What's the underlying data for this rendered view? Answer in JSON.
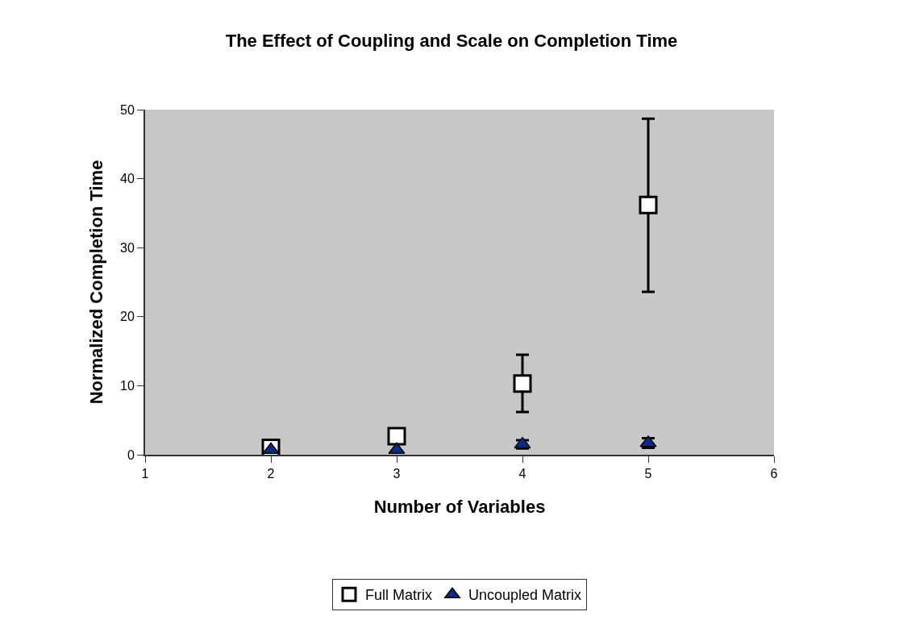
{
  "chart_data": {
    "type": "scatter",
    "title": "The Effect of Coupling and Scale on Completion Time",
    "xlabel": "Number of Variables",
    "ylabel": "Normalized Completion Time",
    "x": [
      2,
      3,
      4,
      5
    ],
    "series": [
      {
        "name": "Full Matrix",
        "color": "#ffffff",
        "marker": "square",
        "values": [
          1.0,
          2.7,
          10.3,
          36.2
        ],
        "errors": [
          null,
          null,
          [
            6.2,
            14.5
          ],
          [
            23.6,
            48.7
          ]
        ]
      },
      {
        "name": "Uncoupled Matrix",
        "color": "#0a2a8a",
        "marker": "triangle",
        "values": [
          0.7,
          0.7,
          1.5,
          1.7
        ],
        "errors": [
          null,
          null,
          0.6,
          0.7
        ]
      }
    ],
    "xlim": [
      1,
      6
    ],
    "xticks": [
      1,
      2,
      3,
      4,
      5,
      6
    ],
    "ylim": [
      0,
      50
    ],
    "yticks": [
      0,
      10,
      20,
      30,
      40,
      50
    ],
    "grid": false,
    "legend": "bottom"
  }
}
